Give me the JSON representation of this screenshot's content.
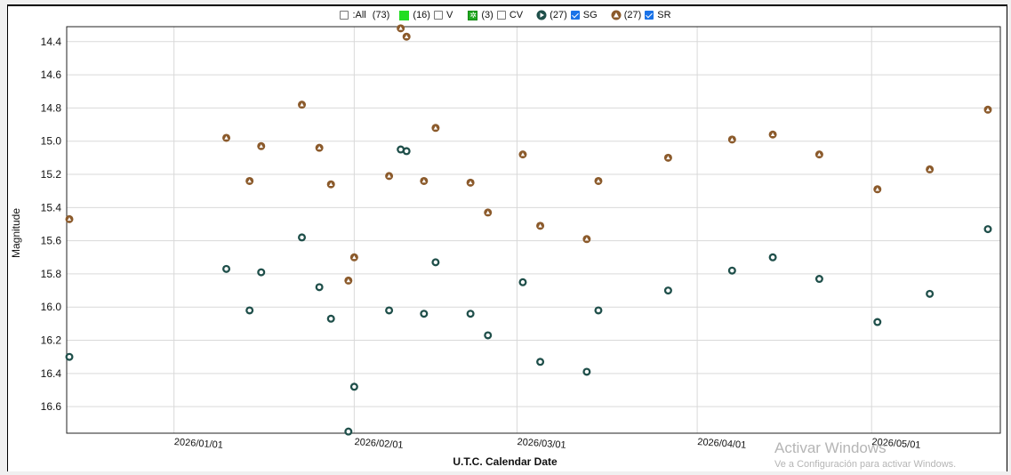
{
  "legend": {
    "all": {
      "label": ":All",
      "count": "(73)",
      "checked": false
    },
    "v": {
      "count": "(16)",
      "label": "V",
      "checked": false,
      "color": "#22dd22"
    },
    "cv": {
      "count": "(3)",
      "label": "CV",
      "checked": false,
      "color": "#22aa22"
    },
    "sg": {
      "count": "(27)",
      "label": "SG",
      "checked": true,
      "color": "#1f4f4a"
    },
    "sr": {
      "count": "(27)",
      "label": "SR",
      "checked": true,
      "color": "#8b5a2b"
    }
  },
  "watermark": {
    "title": "Activar Windows",
    "subtitle": "Ve a Configuración para activar Windows."
  },
  "chart_data": {
    "type": "scatter",
    "xlabel": "U.T.C. Calendar Date",
    "ylabel": "Magnitude",
    "y_inverted": true,
    "ylim": [
      16.76,
      14.31
    ],
    "xlim": [
      "2025-12-14",
      "2026-05-21"
    ],
    "x_ticks": [
      "2026/01/01",
      "2026/02/01",
      "2026/03/01",
      "2026/04/01",
      "2026/05/01"
    ],
    "x_tick_dates": [
      "2026-01-01",
      "2026-02-01",
      "2026-03-01",
      "2026-04-01",
      "2026-05-01"
    ],
    "y_ticks": [
      14.4,
      14.6,
      14.8,
      15.0,
      15.2,
      15.4,
      15.6,
      15.8,
      16.0,
      16.2,
      16.4,
      16.6
    ],
    "y_tick_labels": [
      "14.4",
      "14.6",
      "14.8",
      "15.0",
      "15.2",
      "15.4",
      "15.6",
      "15.8",
      "16.0",
      "16.2",
      "16.4",
      "16.6"
    ],
    "grid": true,
    "legend_position": "top-center",
    "series": [
      {
        "name": "SR",
        "color": "#8b5a2b",
        "points": [
          {
            "x": "2025-12-14",
            "y": 15.47
          },
          {
            "x": "2026-01-10",
            "y": 14.98
          },
          {
            "x": "2026-01-14",
            "y": 15.24
          },
          {
            "x": "2026-01-16",
            "y": 15.03
          },
          {
            "x": "2026-01-23",
            "y": 14.78
          },
          {
            "x": "2026-01-26",
            "y": 15.04
          },
          {
            "x": "2026-01-28",
            "y": 15.26
          },
          {
            "x": "2026-01-31",
            "y": 15.84
          },
          {
            "x": "2026-02-01",
            "y": 15.7
          },
          {
            "x": "2026-02-07",
            "y": 15.21
          },
          {
            "x": "2026-02-09",
            "y": 14.32
          },
          {
            "x": "2026-02-10",
            "y": 14.37
          },
          {
            "x": "2026-02-13",
            "y": 15.24
          },
          {
            "x": "2026-02-15",
            "y": 14.92
          },
          {
            "x": "2026-02-21",
            "y": 15.25
          },
          {
            "x": "2026-02-24",
            "y": 15.43
          },
          {
            "x": "2026-03-02",
            "y": 15.08
          },
          {
            "x": "2026-03-05",
            "y": 15.51
          },
          {
            "x": "2026-03-13",
            "y": 15.59
          },
          {
            "x": "2026-03-15",
            "y": 15.24
          },
          {
            "x": "2026-03-27",
            "y": 15.1
          },
          {
            "x": "2026-04-07",
            "y": 14.99
          },
          {
            "x": "2026-04-14",
            "y": 14.96
          },
          {
            "x": "2026-04-22",
            "y": 15.08
          },
          {
            "x": "2026-05-02",
            "y": 15.29
          },
          {
            "x": "2026-05-11",
            "y": 15.17
          },
          {
            "x": "2026-05-21",
            "y": 14.81
          }
        ]
      },
      {
        "name": "SG",
        "color": "#1f4f4a",
        "points": [
          {
            "x": "2025-12-14",
            "y": 16.3
          },
          {
            "x": "2026-01-10",
            "y": 15.77
          },
          {
            "x": "2026-01-14",
            "y": 16.02
          },
          {
            "x": "2026-01-16",
            "y": 15.79
          },
          {
            "x": "2026-01-23",
            "y": 15.58
          },
          {
            "x": "2026-01-26",
            "y": 15.88
          },
          {
            "x": "2026-01-28",
            "y": 16.07
          },
          {
            "x": "2026-01-31",
            "y": 16.75
          },
          {
            "x": "2026-02-01",
            "y": 16.48
          },
          {
            "x": "2026-02-07",
            "y": 16.02
          },
          {
            "x": "2026-02-09",
            "y": 15.05
          },
          {
            "x": "2026-02-10",
            "y": 15.06
          },
          {
            "x": "2026-02-13",
            "y": 16.04
          },
          {
            "x": "2026-02-15",
            "y": 15.73
          },
          {
            "x": "2026-02-21",
            "y": 16.04
          },
          {
            "x": "2026-02-24",
            "y": 16.17
          },
          {
            "x": "2026-03-02",
            "y": 15.85
          },
          {
            "x": "2026-03-05",
            "y": 16.33
          },
          {
            "x": "2026-03-13",
            "y": 16.39
          },
          {
            "x": "2026-03-15",
            "y": 16.02
          },
          {
            "x": "2026-03-27",
            "y": 15.9
          },
          {
            "x": "2026-04-07",
            "y": 15.78
          },
          {
            "x": "2026-04-14",
            "y": 15.7
          },
          {
            "x": "2026-04-22",
            "y": 15.83
          },
          {
            "x": "2026-05-02",
            "y": 16.09
          },
          {
            "x": "2026-05-11",
            "y": 15.92
          },
          {
            "x": "2026-05-21",
            "y": 15.53
          }
        ]
      }
    ]
  }
}
